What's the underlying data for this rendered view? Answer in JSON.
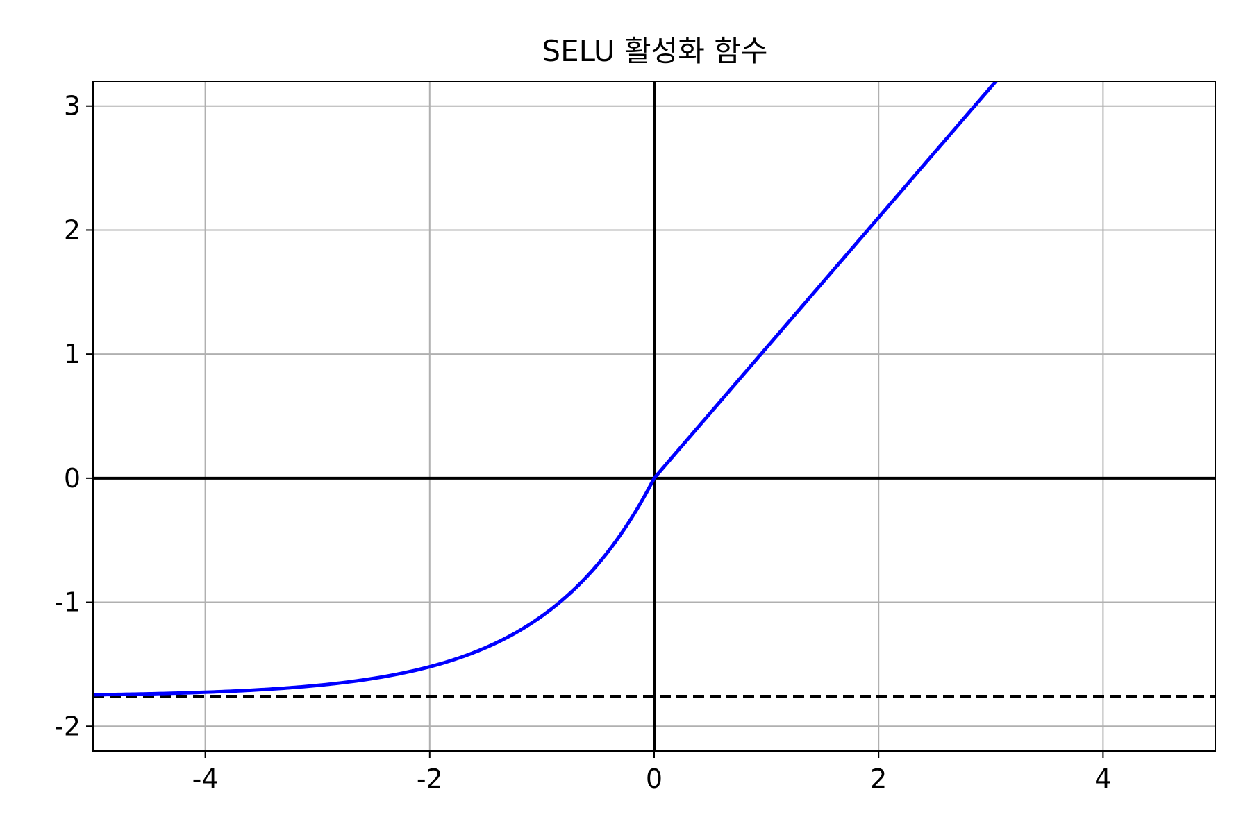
{
  "chart_data": {
    "type": "line",
    "title": "SELU 활성화 함수",
    "xlabel": "",
    "ylabel": "",
    "xlim": [
      -5,
      5
    ],
    "ylim": [
      -2.2,
      3.2
    ],
    "xticks": [
      -4,
      -2,
      0,
      2,
      4
    ],
    "yticks": [
      -2,
      -1,
      0,
      1,
      2,
      3
    ],
    "xtick_labels": [
      "-4",
      "-2",
      "0",
      "2",
      "4"
    ],
    "ytick_labels": [
      "-2",
      "-1",
      "0",
      "1",
      "2",
      "3"
    ],
    "grid": true,
    "legend": "none",
    "series": [
      {
        "function": "selu",
        "alpha": 1.6733,
        "scale": 1.0507,
        "color": "#0000ff",
        "x": [
          -5,
          -4.5,
          -4,
          -3.5,
          -3,
          -2.5,
          -2,
          -1.5,
          -1.25,
          -1,
          -0.75,
          -0.5,
          -0.25,
          0,
          0.5,
          1,
          1.5,
          2,
          2.5,
          3,
          3.05
        ],
        "y": [
          -1.7463,
          -1.7387,
          -1.7262,
          -1.7055,
          -1.6713,
          -1.615,
          -1.5202,
          -1.366,
          -1.2545,
          -1.1113,
          -0.9277,
          -0.6917,
          -0.389,
          0,
          0.5254,
          1.0507,
          1.5761,
          2.1014,
          2.6268,
          3.1521,
          3.2046
        ]
      }
    ],
    "reference_lines": [
      {
        "orientation": "horizontal",
        "value": 0,
        "style": "solid",
        "color": "#000000"
      },
      {
        "orientation": "vertical",
        "value": 0,
        "style": "solid",
        "color": "#000000"
      },
      {
        "orientation": "horizontal",
        "value": -1.7581,
        "style": "dashed",
        "color": "#000000"
      }
    ],
    "colors": {
      "grid": "#b0b0b0",
      "axes": "#000000",
      "background": "#ffffff"
    }
  }
}
